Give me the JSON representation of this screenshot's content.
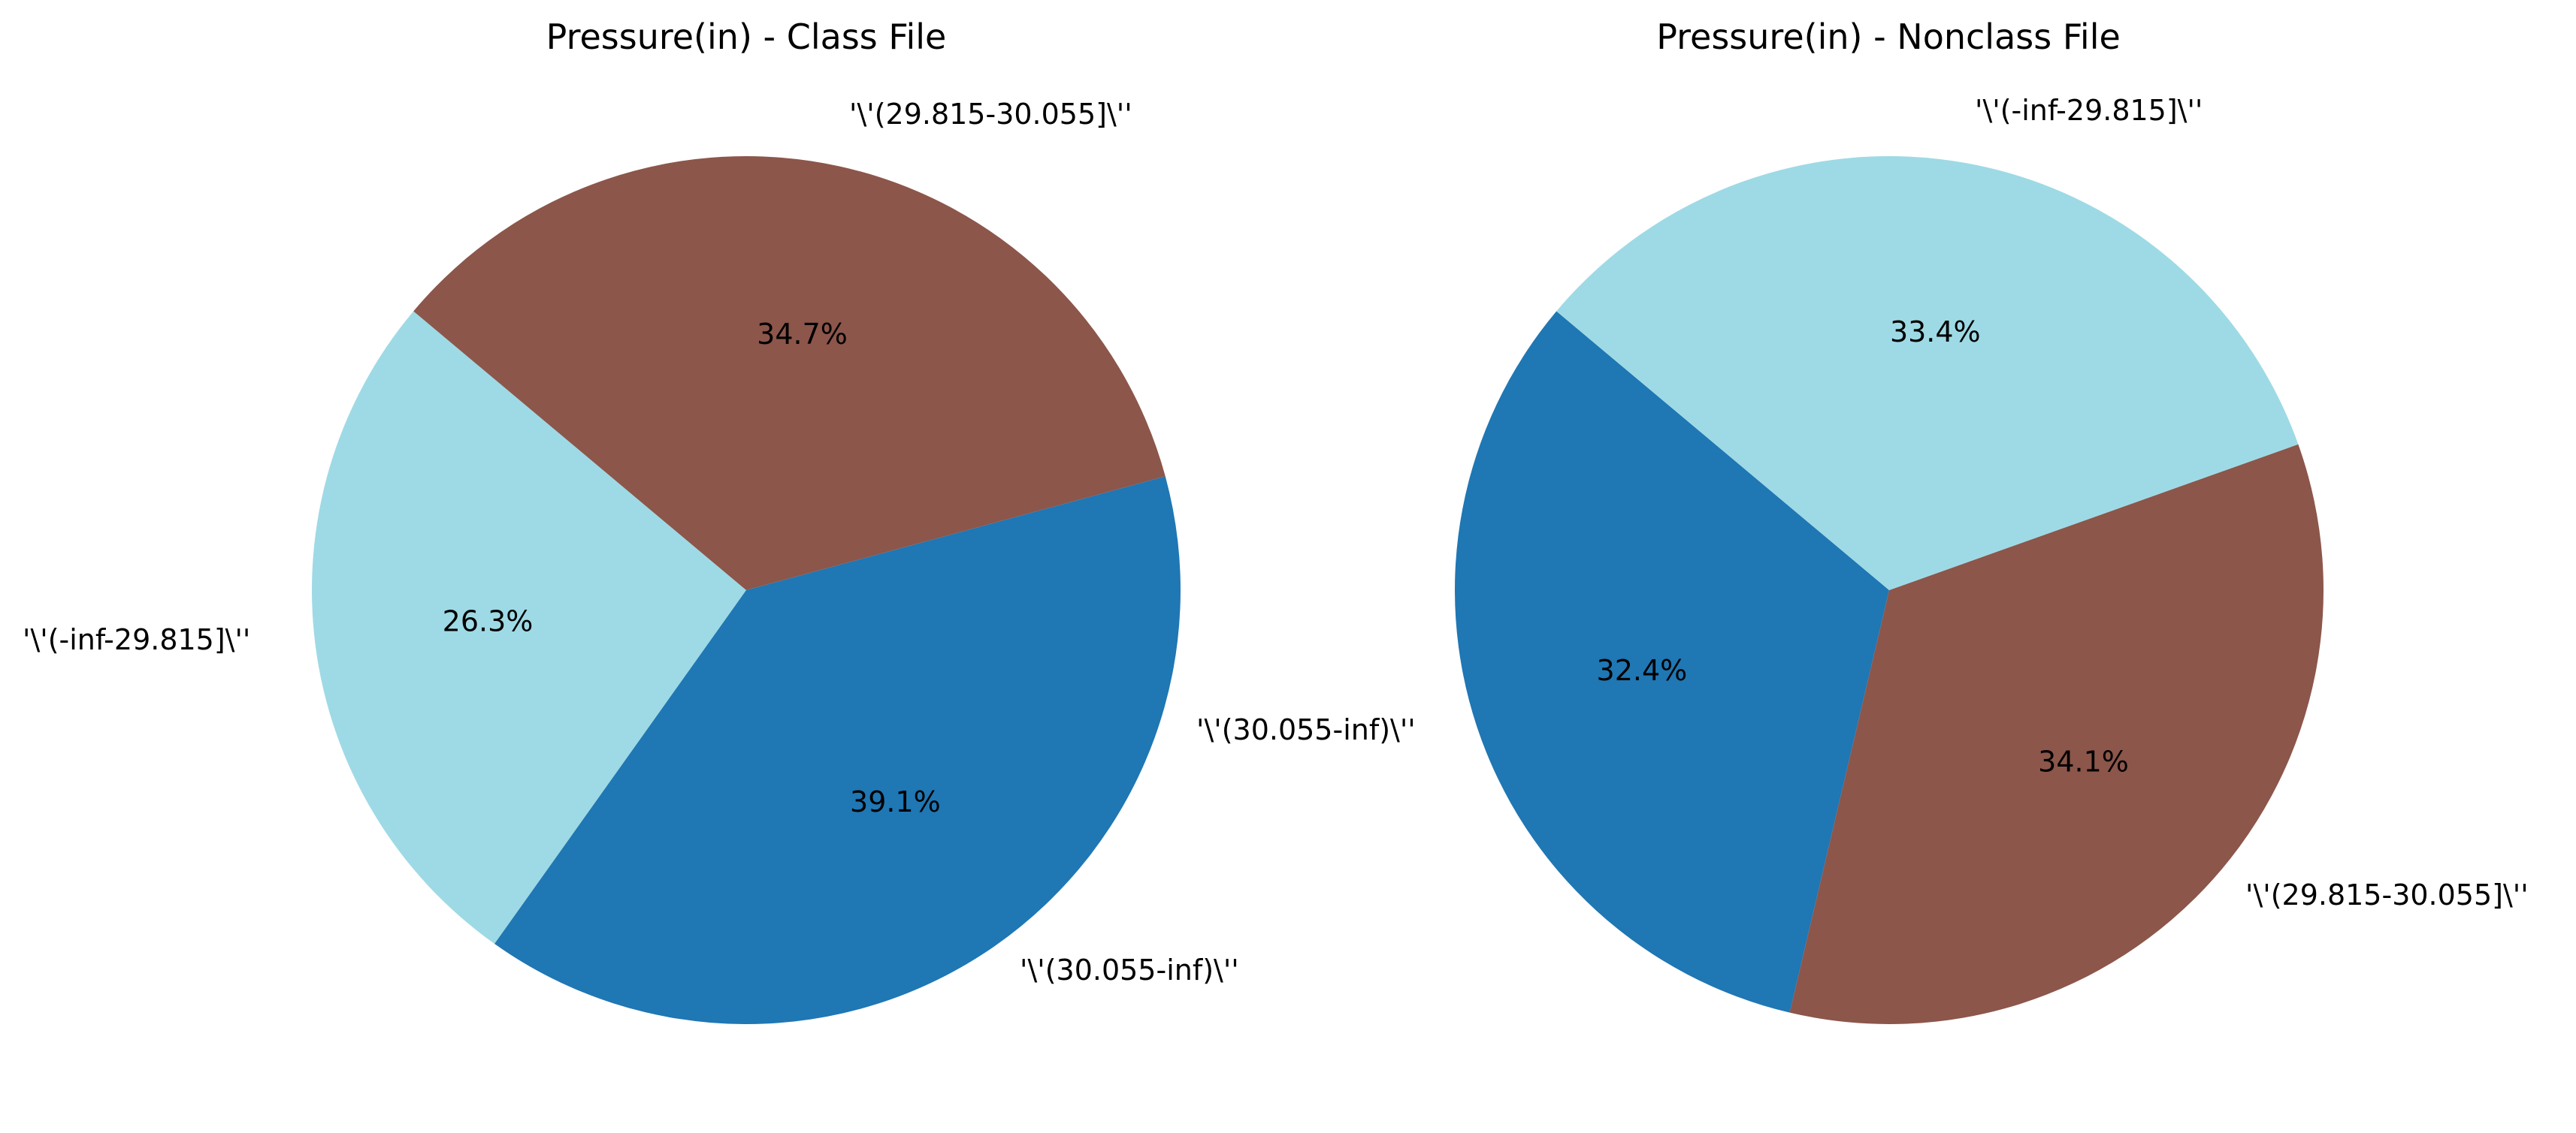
{
  "chart_data": [
    {
      "type": "pie",
      "title": "Pressure(in) - Class File",
      "start_angle_deg": 140,
      "slices": [
        {
          "label": "'\\'(-inf-29.815]\\''",
          "percent": 26.3,
          "pct_text": "26.3%",
          "color": "#9edae5"
        },
        {
          "label": "'\\'(30.055-inf)\\''",
          "percent": 39.1,
          "pct_text": "39.1%",
          "color": "#1f77b4"
        },
        {
          "label": "'\\'(29.815-30.055]\\''",
          "percent": 34.7,
          "pct_text": "34.7%",
          "color": "#8c564b"
        }
      ],
      "extra_labels": [
        {
          "label": "'\\'(30.055-inf)\\''"
        }
      ]
    },
    {
      "type": "pie",
      "title": "Pressure(in) - Nonclass File",
      "start_angle_deg": 140,
      "slices": [
        {
          "label": "",
          "percent": 32.4,
          "pct_text": "32.4%",
          "color": "#1f77b4"
        },
        {
          "label": "'\\'(29.815-30.055]\\''",
          "percent": 34.1,
          "pct_text": "34.1%",
          "color": "#8c564b"
        },
        {
          "label": "'\\'(-inf-29.815]\\''",
          "percent": 33.4,
          "pct_text": "33.4%",
          "color": "#9edae5"
        }
      ],
      "extra_labels": []
    }
  ]
}
